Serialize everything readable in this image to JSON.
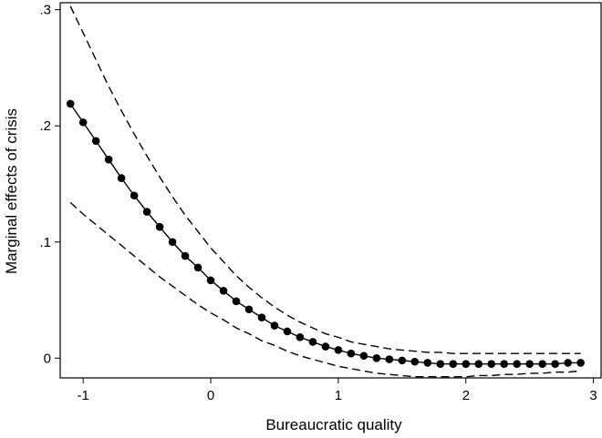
{
  "chart_data": {
    "type": "line",
    "title": "",
    "xlabel": "Bureaucratic quality",
    "ylabel": "Marginal effects of crisis",
    "xlim": [
      -1.18,
      3.06
    ],
    "ylim": [
      -0.017,
      0.306
    ],
    "xticks": [
      -1,
      0,
      1,
      2,
      3
    ],
    "xtick_labels": [
      "-1",
      "0",
      "1",
      "2",
      "3"
    ],
    "yticks": [
      0,
      0.1,
      0.2,
      0.3
    ],
    "ytick_labels": [
      "0",
      ".1",
      ".2",
      ".3"
    ],
    "grid": false,
    "legend": "none",
    "x": [
      -1.1,
      -1.0,
      -0.9,
      -0.8,
      -0.7,
      -0.6,
      -0.5,
      -0.4,
      -0.3,
      -0.2,
      -0.1,
      0.0,
      0.1,
      0.2,
      0.3,
      0.4,
      0.5,
      0.6,
      0.7,
      0.8,
      0.9,
      1.0,
      1.1,
      1.2,
      1.3,
      1.4,
      1.5,
      1.6,
      1.7,
      1.8,
      1.9,
      2.0,
      2.1,
      2.2,
      2.3,
      2.4,
      2.5,
      2.6,
      2.7,
      2.8,
      2.9
    ],
    "series": [
      {
        "style": "solid-markers",
        "color": "#000000",
        "values": [
          0.219,
          0.203,
          0.187,
          0.171,
          0.155,
          0.14,
          0.126,
          0.113,
          0.1,
          0.088,
          0.078,
          0.067,
          0.058,
          0.049,
          0.042,
          0.035,
          0.028,
          0.023,
          0.018,
          0.014,
          0.01,
          0.007,
          0.004,
          0.002,
          0.0,
          -0.001,
          -0.002,
          -0.003,
          -0.004,
          -0.005,
          -0.005,
          -0.005,
          -0.005,
          -0.005,
          -0.005,
          -0.005,
          -0.005,
          -0.005,
          -0.005,
          -0.004,
          -0.004
        ]
      },
      {
        "style": "dashed-upper",
        "color": "#000000",
        "values": [
          0.303,
          0.28,
          0.257,
          0.234,
          0.213,
          0.193,
          0.174,
          0.156,
          0.139,
          0.123,
          0.109,
          0.095,
          0.083,
          0.071,
          0.061,
          0.052,
          0.044,
          0.037,
          0.031,
          0.026,
          0.021,
          0.018,
          0.014,
          0.012,
          0.01,
          0.008,
          0.007,
          0.006,
          0.005,
          0.005,
          0.004,
          0.004,
          0.004,
          0.004,
          0.004,
          0.004,
          0.004,
          0.004,
          0.004,
          0.004,
          0.004
        ]
      },
      {
        "style": "dashed-lower",
        "color": "#000000",
        "values": [
          0.134,
          0.124,
          0.115,
          0.106,
          0.097,
          0.088,
          0.079,
          0.07,
          0.062,
          0.054,
          0.046,
          0.039,
          0.033,
          0.026,
          0.021,
          0.015,
          0.011,
          0.006,
          0.002,
          -0.001,
          -0.004,
          -0.007,
          -0.009,
          -0.011,
          -0.013,
          -0.014,
          -0.015,
          -0.016,
          -0.016,
          -0.016,
          -0.016,
          -0.016,
          -0.015,
          -0.015,
          -0.014,
          -0.014,
          -0.013,
          -0.013,
          -0.012,
          -0.012,
          -0.011
        ]
      }
    ]
  }
}
